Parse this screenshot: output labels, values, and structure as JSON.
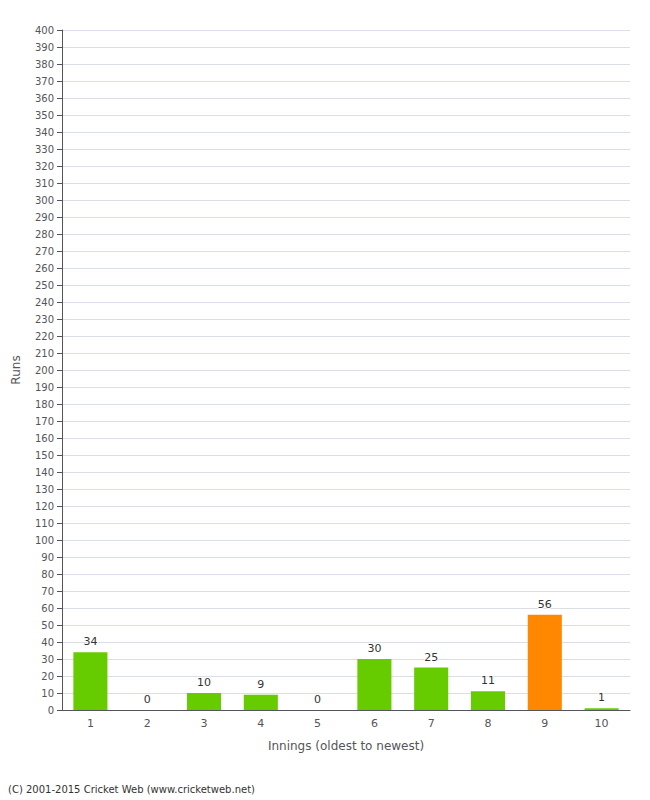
{
  "chart_data": {
    "type": "bar",
    "categories": [
      "1",
      "2",
      "3",
      "4",
      "5",
      "6",
      "7",
      "8",
      "9",
      "10"
    ],
    "values": [
      34,
      0,
      10,
      9,
      0,
      30,
      25,
      11,
      56,
      1
    ],
    "colors": [
      "#66cc00",
      "#66cc00",
      "#66cc00",
      "#66cc00",
      "#66cc00",
      "#66cc00",
      "#66cc00",
      "#66cc00",
      "#ff8800",
      "#66cc00"
    ],
    "xlabel": "Innings (oldest to newest)",
    "ylabel": "Runs",
    "ylim": [
      0,
      400
    ],
    "yticks": [
      0,
      10,
      20,
      30,
      40,
      50,
      60,
      70,
      80,
      90,
      100,
      110,
      120,
      130,
      140,
      150,
      160,
      170,
      180,
      190,
      200,
      210,
      220,
      230,
      240,
      250,
      260,
      270,
      280,
      290,
      300,
      310,
      320,
      330,
      340,
      350,
      360,
      370,
      380,
      390,
      400
    ],
    "grid": true,
    "data_labels": true,
    "annotations": [
      "(C) 2001-2015 Cricket Web (www.cricketweb.net)"
    ]
  }
}
